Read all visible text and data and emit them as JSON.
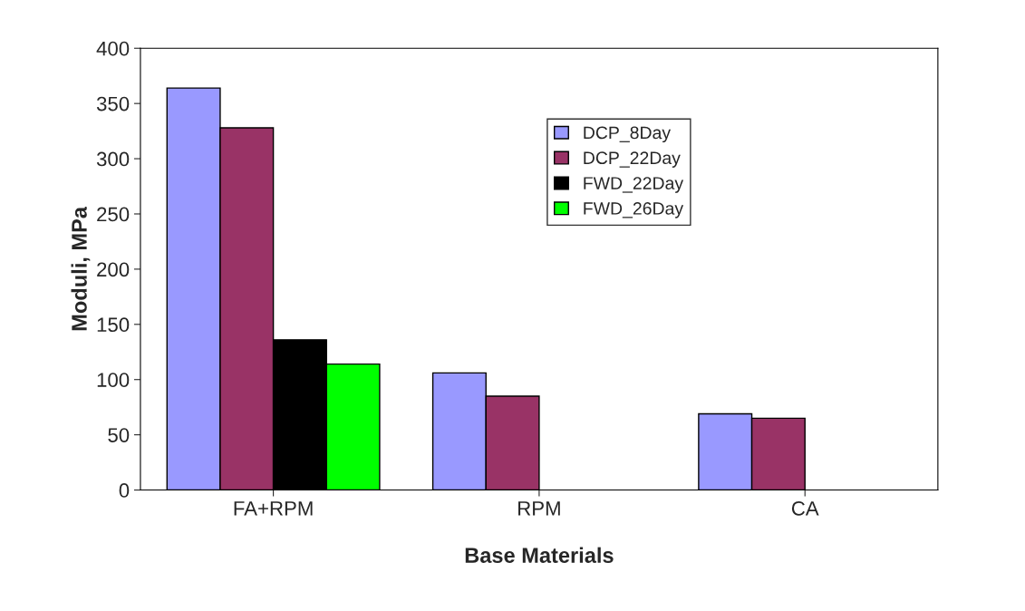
{
  "chart_data": {
    "type": "bar",
    "xlabel": "Base Materials",
    "ylabel": "Moduli, MPa",
    "categories": [
      "FA+RPM",
      "RPM",
      "CA"
    ],
    "series": [
      {
        "name": "DCP_8Day",
        "color": "#9999ff",
        "values": [
          364,
          106,
          69
        ]
      },
      {
        "name": "DCP_22Day",
        "color": "#993366",
        "values": [
          328,
          85,
          65
        ]
      },
      {
        "name": "FWD_22Day",
        "color": "#000000",
        "values": [
          136,
          null,
          null
        ]
      },
      {
        "name": "FWD_26Day",
        "color": "#00ff00",
        "values": [
          114,
          null,
          null
        ]
      }
    ],
    "ylim": [
      0,
      400
    ],
    "yticks": [
      0,
      50,
      100,
      150,
      200,
      250,
      300,
      350,
      400
    ],
    "grid": false,
    "legend": "top"
  }
}
